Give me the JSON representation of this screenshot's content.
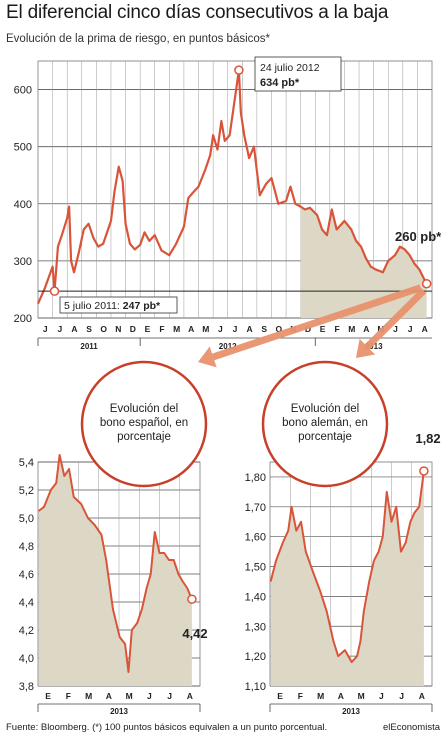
{
  "header": {
    "title": "El diferencial cinco días consecutivos a la baja",
    "subtitle": "Evolución de la prima de riesgo, en puntos básicos*"
  },
  "footer": {
    "source": "Fuente: Bloomberg. (*) 100 puntos básicos equivalen a un punto porcentual.",
    "brand": "elEconomista"
  },
  "colors": {
    "line": "#d9553a",
    "area": "#ddd8c6",
    "grid": "#888888",
    "circle": "#c8402a",
    "arrow": "#e8916e"
  },
  "chart_data": [
    {
      "type": "line",
      "ylim": [
        200,
        650
      ],
      "yticks": [
        200,
        300,
        400,
        500,
        600
      ],
      "x_month_labels": [
        "J",
        "J",
        "A",
        "S",
        "O",
        "N",
        "D",
        "E",
        "F",
        "M",
        "A",
        "M",
        "J",
        "J",
        "A",
        "S",
        "O",
        "N",
        "D",
        "E",
        "F",
        "M",
        "A",
        "M",
        "J",
        "J",
        "A"
      ],
      "year_labels": [
        "2011",
        "2012",
        "2013"
      ],
      "shaded_from": "2012-12-01",
      "annotations": [
        {
          "date": "5 julio 2011",
          "label_prefix": "5 julio 2011: ",
          "value_label": "247 pb*",
          "value": 247
        },
        {
          "date": "24 julio 2012",
          "label_prefix": "24 julio 2012",
          "value_label": "634 pb*",
          "value": 634
        },
        {
          "label": "260 pb*",
          "value": 260
        }
      ],
      "series": [
        {
          "points": [
            [
              "2011-06-01",
              225
            ],
            [
              "2011-06-15",
              252
            ],
            [
              "2011-07-01",
              290
            ],
            [
              "2011-07-05",
              247
            ],
            [
              "2011-07-12",
              325
            ],
            [
              "2011-07-20",
              345
            ],
            [
              "2011-08-01",
              375
            ],
            [
              "2011-08-05",
              395
            ],
            [
              "2011-08-09",
              300
            ],
            [
              "2011-08-15",
              280
            ],
            [
              "2011-08-25",
              315
            ],
            [
              "2011-09-05",
              355
            ],
            [
              "2011-09-15",
              365
            ],
            [
              "2011-09-25",
              340
            ],
            [
              "2011-10-05",
              325
            ],
            [
              "2011-10-15",
              330
            ],
            [
              "2011-10-25",
              355
            ],
            [
              "2011-11-01",
              370
            ],
            [
              "2011-11-08",
              420
            ],
            [
              "2011-11-17",
              465
            ],
            [
              "2011-11-25",
              440
            ],
            [
              "2011-12-01",
              365
            ],
            [
              "2011-12-10",
              330
            ],
            [
              "2011-12-20",
              320
            ],
            [
              "2012-01-01",
              328
            ],
            [
              "2012-01-10",
              350
            ],
            [
              "2012-01-20",
              335
            ],
            [
              "2012-02-01",
              345
            ],
            [
              "2012-02-15",
              318
            ],
            [
              "2012-03-01",
              310
            ],
            [
              "2012-03-15",
              330
            ],
            [
              "2012-04-01",
              360
            ],
            [
              "2012-04-10",
              410
            ],
            [
              "2012-04-20",
              420
            ],
            [
              "2012-05-01",
              430
            ],
            [
              "2012-05-15",
              460
            ],
            [
              "2012-05-25",
              485
            ],
            [
              "2012-06-01",
              520
            ],
            [
              "2012-06-10",
              495
            ],
            [
              "2012-06-18",
              545
            ],
            [
              "2012-06-25",
              510
            ],
            [
              "2012-07-05",
              520
            ],
            [
              "2012-07-15",
              580
            ],
            [
              "2012-07-24",
              634
            ],
            [
              "2012-07-28",
              560
            ],
            [
              "2012-08-05",
              520
            ],
            [
              "2012-08-15",
              480
            ],
            [
              "2012-08-25",
              500
            ],
            [
              "2012-09-07",
              415
            ],
            [
              "2012-09-20",
              435
            ],
            [
              "2012-10-01",
              445
            ],
            [
              "2012-10-15",
              400
            ],
            [
              "2012-10-31",
              405
            ],
            [
              "2012-11-10",
              430
            ],
            [
              "2012-11-20",
              400
            ],
            [
              "2012-12-01",
              395
            ],
            [
              "2012-12-10",
              390
            ],
            [
              "2012-12-20",
              393
            ],
            [
              "2013-01-05",
              380
            ],
            [
              "2013-01-15",
              355
            ],
            [
              "2013-01-25",
              345
            ],
            [
              "2013-02-05",
              390
            ],
            [
              "2013-02-15",
              355
            ],
            [
              "2013-03-01",
              370
            ],
            [
              "2013-03-15",
              355
            ],
            [
              "2013-03-25",
              335
            ],
            [
              "2013-04-05",
              325
            ],
            [
              "2013-04-15",
              305
            ],
            [
              "2013-04-25",
              290
            ],
            [
              "2013-05-05",
              285
            ],
            [
              "2013-05-20",
              280
            ],
            [
              "2013-06-01",
              300
            ],
            [
              "2013-06-15",
              310
            ],
            [
              "2013-06-25",
              325
            ],
            [
              "2013-07-05",
              320
            ],
            [
              "2013-07-15",
              310
            ],
            [
              "2013-07-25",
              295
            ],
            [
              "2013-08-05",
              285
            ],
            [
              "2013-08-15",
              268
            ],
            [
              "2013-08-20",
              260
            ]
          ]
        }
      ]
    },
    {
      "type": "line",
      "title": "Evolución del bono español, en porcentaje",
      "ylim": [
        3.8,
        5.4
      ],
      "yticks": [
        "3,8",
        "4,0",
        "4,2",
        "4,4",
        "4,6",
        "4,8",
        "5,0",
        "5,2",
        "5,4"
      ],
      "x_month_labels": [
        "E",
        "F",
        "M",
        "A",
        "M",
        "J",
        "J",
        "A"
      ],
      "year_label": "2013",
      "last_value_label": "4,42",
      "series": [
        {
          "points": [
            [
              "2013-01-02",
              5.05
            ],
            [
              "2013-01-10",
              5.08
            ],
            [
              "2013-01-20",
              5.2
            ],
            [
              "2013-01-28",
              5.25
            ],
            [
              "2013-02-03",
              5.45
            ],
            [
              "2013-02-10",
              5.3
            ],
            [
              "2013-02-17",
              5.35
            ],
            [
              "2013-02-24",
              5.15
            ],
            [
              "2013-03-05",
              5.1
            ],
            [
              "2013-03-15",
              5.0
            ],
            [
              "2013-03-25",
              4.95
            ],
            [
              "2013-04-05",
              4.88
            ],
            [
              "2013-04-12",
              4.7
            ],
            [
              "2013-04-22",
              4.35
            ],
            [
              "2013-05-02",
              4.15
            ],
            [
              "2013-05-10",
              4.1
            ],
            [
              "2013-05-15",
              3.9
            ],
            [
              "2013-05-20",
              4.2
            ],
            [
              "2013-05-28",
              4.25
            ],
            [
              "2013-06-05",
              4.35
            ],
            [
              "2013-06-12",
              4.5
            ],
            [
              "2013-06-18",
              4.6
            ],
            [
              "2013-06-24",
              4.9
            ],
            [
              "2013-07-01",
              4.75
            ],
            [
              "2013-07-08",
              4.75
            ],
            [
              "2013-07-15",
              4.7
            ],
            [
              "2013-07-22",
              4.7
            ],
            [
              "2013-07-29",
              4.6
            ],
            [
              "2013-08-05",
              4.55
            ],
            [
              "2013-08-12",
              4.5
            ],
            [
              "2013-08-19",
              4.42
            ]
          ]
        }
      ]
    },
    {
      "type": "line",
      "title": "Evolución del bono alemán, en porcentaje",
      "ylim": [
        1.1,
        1.85
      ],
      "yticks": [
        "1,10",
        "1,20",
        "1,30",
        "1,40",
        "1,50",
        "1,60",
        "1,70",
        "1,80"
      ],
      "x_month_labels": [
        "E",
        "F",
        "M",
        "A",
        "M",
        "J",
        "J",
        "A"
      ],
      "year_label": "2013",
      "last_value_label": "1,82",
      "series": [
        {
          "points": [
            [
              "2013-01-02",
              1.45
            ],
            [
              "2013-01-10",
              1.52
            ],
            [
              "2013-01-20",
              1.58
            ],
            [
              "2013-01-28",
              1.62
            ],
            [
              "2013-02-03",
              1.7
            ],
            [
              "2013-02-10",
              1.62
            ],
            [
              "2013-02-17",
              1.65
            ],
            [
              "2013-02-24",
              1.55
            ],
            [
              "2013-03-05",
              1.48
            ],
            [
              "2013-03-15",
              1.42
            ],
            [
              "2013-03-25",
              1.35
            ],
            [
              "2013-04-05",
              1.25
            ],
            [
              "2013-04-12",
              1.2
            ],
            [
              "2013-04-22",
              1.22
            ],
            [
              "2013-05-02",
              1.18
            ],
            [
              "2013-05-10",
              1.2
            ],
            [
              "2013-05-15",
              1.25
            ],
            [
              "2013-05-20",
              1.35
            ],
            [
              "2013-05-28",
              1.45
            ],
            [
              "2013-06-05",
              1.52
            ],
            [
              "2013-06-12",
              1.55
            ],
            [
              "2013-06-18",
              1.6
            ],
            [
              "2013-06-24",
              1.75
            ],
            [
              "2013-07-01",
              1.65
            ],
            [
              "2013-07-08",
              1.7
            ],
            [
              "2013-07-15",
              1.55
            ],
            [
              "2013-07-22",
              1.58
            ],
            [
              "2013-07-29",
              1.65
            ],
            [
              "2013-08-05",
              1.68
            ],
            [
              "2013-08-12",
              1.7
            ],
            [
              "2013-08-19",
              1.82
            ]
          ]
        }
      ]
    }
  ]
}
